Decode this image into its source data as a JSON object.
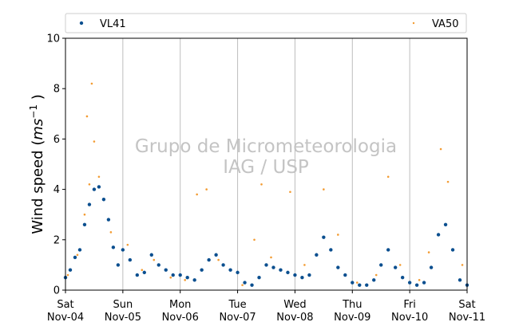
{
  "chart_data": {
    "type": "scatter",
    "ylabel": "Wind speed (ms⁻¹ )",
    "ylabel_text": "Wind speed (",
    "ylabel_unit": "ms",
    "ylabel_exp": "−1",
    "ylabel_close": " )",
    "ylim": [
      0,
      10
    ],
    "y_ticks": [
      "0",
      "2",
      "4",
      "6",
      "8",
      "10"
    ],
    "xlim_days": [
      0,
      7
    ],
    "x_ticks": [
      {
        "day": "Sat",
        "date": "Nov-04"
      },
      {
        "day": "Sun",
        "date": "Nov-05"
      },
      {
        "day": "Mon",
        "date": "Nov-06"
      },
      {
        "day": "Tue",
        "date": "Nov-07"
      },
      {
        "day": "Wed",
        "date": "Nov-08"
      },
      {
        "day": "Thu",
        "date": "Nov-09"
      },
      {
        "day": "Fri",
        "date": "Nov-10"
      },
      {
        "day": "Sat",
        "date": "Nov-11"
      }
    ],
    "grid": "vertical gridlines at each day",
    "legend": "top, two columns",
    "watermark": [
      "Grupo de Micrometeorologia",
      "IAG / USP"
    ],
    "series": [
      {
        "name": "VL41",
        "color": "#0b4f8f",
        "x_dates": [
          "Nov-04 00:00",
          "Nov-04 02:00",
          "Nov-04 04:00",
          "Nov-04 06:00",
          "Nov-04 08:00",
          "Nov-04 10:00",
          "Nov-04 12:00",
          "Nov-04 14:00",
          "Nov-04 16:00",
          "Nov-04 18:00",
          "Nov-04 20:00",
          "Nov-04 22:00",
          "Nov-05 00:00",
          "Nov-05 03:00",
          "Nov-05 06:00",
          "Nov-05 09:00",
          "Nov-05 12:00",
          "Nov-05 15:00",
          "Nov-05 18:00",
          "Nov-05 21:00",
          "Nov-06 00:00",
          "Nov-06 03:00",
          "Nov-06 06:00",
          "Nov-06 09:00",
          "Nov-06 12:00",
          "Nov-06 15:00",
          "Nov-06 18:00",
          "Nov-06 21:00",
          "Nov-07 00:00",
          "Nov-07 03:00",
          "Nov-07 06:00",
          "Nov-07 09:00",
          "Nov-07 12:00",
          "Nov-07 15:00",
          "Nov-07 18:00",
          "Nov-07 21:00",
          "Nov-08 00:00",
          "Nov-08 03:00",
          "Nov-08 06:00",
          "Nov-08 09:00",
          "Nov-08 12:00",
          "Nov-08 15:00",
          "Nov-08 18:00",
          "Nov-08 21:00",
          "Nov-09 00:00",
          "Nov-09 03:00",
          "Nov-09 06:00",
          "Nov-09 09:00",
          "Nov-09 12:00",
          "Nov-09 15:00",
          "Nov-09 18:00",
          "Nov-09 21:00",
          "Nov-10 00:00",
          "Nov-10 03:00",
          "Nov-10 06:00",
          "Nov-10 09:00",
          "Nov-10 12:00",
          "Nov-10 15:00",
          "Nov-10 18:00",
          "Nov-10 21:00",
          "Nov-11 00:00"
        ],
        "y": [
          0.5,
          0.8,
          1.3,
          1.6,
          2.6,
          3.4,
          4.0,
          4.1,
          3.6,
          2.8,
          1.7,
          1.0,
          1.6,
          1.2,
          0.6,
          0.7,
          1.4,
          1.0,
          0.8,
          0.6,
          0.6,
          0.5,
          0.4,
          0.8,
          1.2,
          1.4,
          1.0,
          0.8,
          0.7,
          0.3,
          0.2,
          0.5,
          1.0,
          0.9,
          0.8,
          0.7,
          0.6,
          0.5,
          0.6,
          1.4,
          2.1,
          1.6,
          0.9,
          0.6,
          0.3,
          0.2,
          0.2,
          0.4,
          1.0,
          1.6,
          0.9,
          0.5,
          0.3,
          0.2,
          0.3,
          0.9,
          2.2,
          2.6,
          1.6,
          0.4,
          0.2
        ]
      },
      {
        "name": "VA50",
        "color": "#f39c33",
        "x_dates": [
          "Nov-04 01:00",
          "Nov-04 05:00",
          "Nov-04 08:00",
          "Nov-04 09:00",
          "Nov-04 10:00",
          "Nov-04 11:00",
          "Nov-04 12:00",
          "Nov-04 14:00",
          "Nov-04 19:00",
          "Nov-05 02:00",
          "Nov-05 08:00",
          "Nov-05 13:00",
          "Nov-05 20:00",
          "Nov-06 02:00",
          "Nov-06 07:00",
          "Nov-06 11:00",
          "Nov-06 16:00",
          "Nov-07 02:00",
          "Nov-07 07:00",
          "Nov-07 10:00",
          "Nov-07 14:00",
          "Nov-07 22:00",
          "Nov-08 04:00",
          "Nov-08 12:00",
          "Nov-08 18:00",
          "Nov-09 02:00",
          "Nov-09 10:00",
          "Nov-09 15:00",
          "Nov-09 20:00",
          "Nov-10 04:00",
          "Nov-10 08:00",
          "Nov-10 13:00",
          "Nov-10 16:00",
          "Nov-10 22:00"
        ],
        "y": [
          0.6,
          1.4,
          3.0,
          6.9,
          4.2,
          8.2,
          5.9,
          4.5,
          2.3,
          1.8,
          0.8,
          1.2,
          0.5,
          0.4,
          3.8,
          4.0,
          1.2,
          0.2,
          2.0,
          4.2,
          1.3,
          3.9,
          1.0,
          4.0,
          2.2,
          0.3,
          0.6,
          4.5,
          1.0,
          0.4,
          1.5,
          5.6,
          4.3,
          1.0
        ]
      }
    ]
  }
}
